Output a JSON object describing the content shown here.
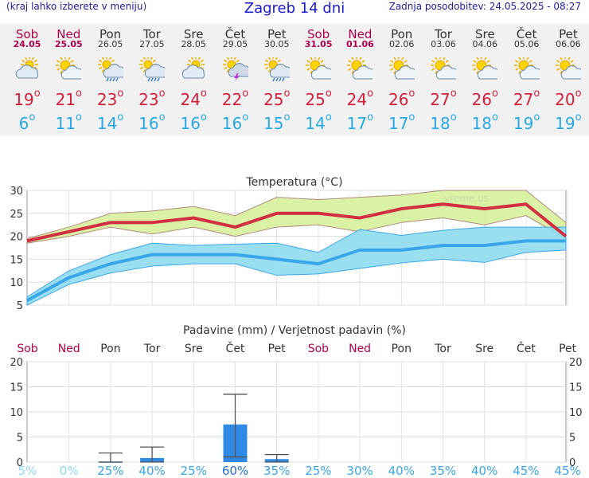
{
  "header": {
    "left_note": "(kraj lahko izberete v meniju)",
    "title": "Zagreb 14 dni",
    "updated": "Zadnja posodobitev: 24.05.2025 - 08:27"
  },
  "days": [
    {
      "name": "Sob",
      "date": "24.05",
      "weekend": true,
      "icon": "partly-cloudy-icon",
      "max": "19",
      "min": "6"
    },
    {
      "name": "Ned",
      "date": "25.05",
      "weekend": true,
      "icon": "sun-cloud-icon",
      "max": "21",
      "min": "11"
    },
    {
      "name": "Pon",
      "date": "26.05",
      "weekend": false,
      "icon": "sun-rain-icon",
      "max": "23",
      "min": "14"
    },
    {
      "name": "Tor",
      "date": "27.05",
      "weekend": false,
      "icon": "sun-rain-icon",
      "max": "23",
      "min": "16"
    },
    {
      "name": "Sre",
      "date": "28.05",
      "weekend": false,
      "icon": "partly-cloudy-icon",
      "max": "24",
      "min": "16"
    },
    {
      "name": "Čet",
      "date": "29.05",
      "weekend": false,
      "icon": "thunderstorm-icon",
      "max": "22",
      "min": "16"
    },
    {
      "name": "Pet",
      "date": "30.05",
      "weekend": false,
      "icon": "sun-rain-icon",
      "max": "25",
      "min": "15"
    },
    {
      "name": "Sob",
      "date": "31.05",
      "weekend": true,
      "icon": "sun-cloud-icon",
      "max": "25",
      "min": "14"
    },
    {
      "name": "Ned",
      "date": "01.06",
      "weekend": true,
      "icon": "sun-cloud-icon",
      "max": "24",
      "min": "17"
    },
    {
      "name": "Pon",
      "date": "02.06",
      "weekend": false,
      "icon": "sun-cloud-icon",
      "max": "26",
      "min": "17"
    },
    {
      "name": "Tor",
      "date": "03.06",
      "weekend": false,
      "icon": "sun-cloud-icon",
      "max": "27",
      "min": "18"
    },
    {
      "name": "Sre",
      "date": "04.06",
      "weekend": false,
      "icon": "sun-cloud-icon",
      "max": "26",
      "min": "18"
    },
    {
      "name": "Čet",
      "date": "05.06",
      "weekend": false,
      "icon": "sun-cloud-icon",
      "max": "27",
      "min": "19"
    },
    {
      "name": "Pet",
      "date": "06.06",
      "weekend": false,
      "icon": "sun-cloud-icon",
      "max": "20",
      "min": "19"
    }
  ],
  "colors": {
    "weekend": "#b0004a",
    "max_line": "#d0303f",
    "min_line": "#3aa6e8",
    "max_band": "#d7ef9c",
    "min_band": "#8fdcef",
    "rain_bar": "#2f8ae6",
    "prob_strong": "#1e6fd6",
    "prob_weak": "#8fd8f5"
  },
  "chart_data": [
    {
      "type": "line",
      "title": "Temperatura (°C)",
      "watermark": "vreme.us",
      "categories": [
        "Sob",
        "Ned",
        "Pon",
        "Tor",
        "Sre",
        "Čet",
        "Pet",
        "Sob",
        "Ned",
        "Pon",
        "Tor",
        "Sre",
        "Čet",
        "Pet"
      ],
      "ylim": [
        5,
        30
      ],
      "yticks": [
        5,
        10,
        15,
        20,
        25,
        30
      ],
      "series": [
        {
          "values": [
            19,
            21,
            23,
            23,
            24,
            22,
            25,
            25,
            24,
            26,
            27,
            26,
            27,
            20
          ],
          "band_low": [
            18.5,
            20,
            22,
            20.5,
            22,
            20,
            22,
            22.5,
            21,
            23,
            24,
            22.5,
            24.5,
            19.5
          ],
          "band_high": [
            19.5,
            22,
            25,
            25.5,
            26.5,
            24.5,
            28.5,
            28,
            28.5,
            29,
            30,
            30,
            30,
            23
          ]
        },
        {
          "values": [
            6,
            11,
            14,
            16,
            16,
            16,
            15,
            14,
            17,
            17,
            18,
            18,
            19,
            19
          ],
          "band_low": [
            5,
            9.5,
            12,
            13.5,
            14,
            14,
            11.5,
            11.8,
            13,
            14.2,
            15,
            14.3,
            16.5,
            17
          ],
          "band_high": [
            6.8,
            12.5,
            16,
            18.5,
            18,
            18.3,
            18.5,
            16.5,
            21.5,
            20.2,
            21.3,
            22,
            22,
            22
          ]
        }
      ],
      "grid": true
    },
    {
      "type": "bar",
      "title": "Padavine (mm) / Verjetnost padavin (%)",
      "categories": [
        "Sob",
        "Ned",
        "Pon",
        "Tor",
        "Sre",
        "Čet",
        "Pet",
        "Sob",
        "Ned",
        "Pon",
        "Tor",
        "Sre",
        "Čet",
        "Pet"
      ],
      "ylim": [
        0,
        20
      ],
      "yticks": [
        0,
        5,
        10,
        15,
        20
      ],
      "values": [
        0,
        0,
        0.1,
        0.8,
        0,
        7.5,
        0.6,
        0,
        0,
        0,
        0,
        0,
        0,
        0
      ],
      "error_low": [
        null,
        null,
        0,
        0,
        null,
        1,
        0,
        null,
        null,
        null,
        null,
        null,
        null,
        null
      ],
      "error_high": [
        null,
        null,
        1.8,
        3,
        null,
        13.5,
        1.5,
        null,
        null,
        null,
        null,
        null,
        null,
        null
      ],
      "probability": [
        "5%",
        "0%",
        "25%",
        "40%",
        "25%",
        "60%",
        "35%",
        "25%",
        "30%",
        "40%",
        "35%",
        "40%",
        "45%",
        "45%"
      ],
      "grid": true
    }
  ]
}
